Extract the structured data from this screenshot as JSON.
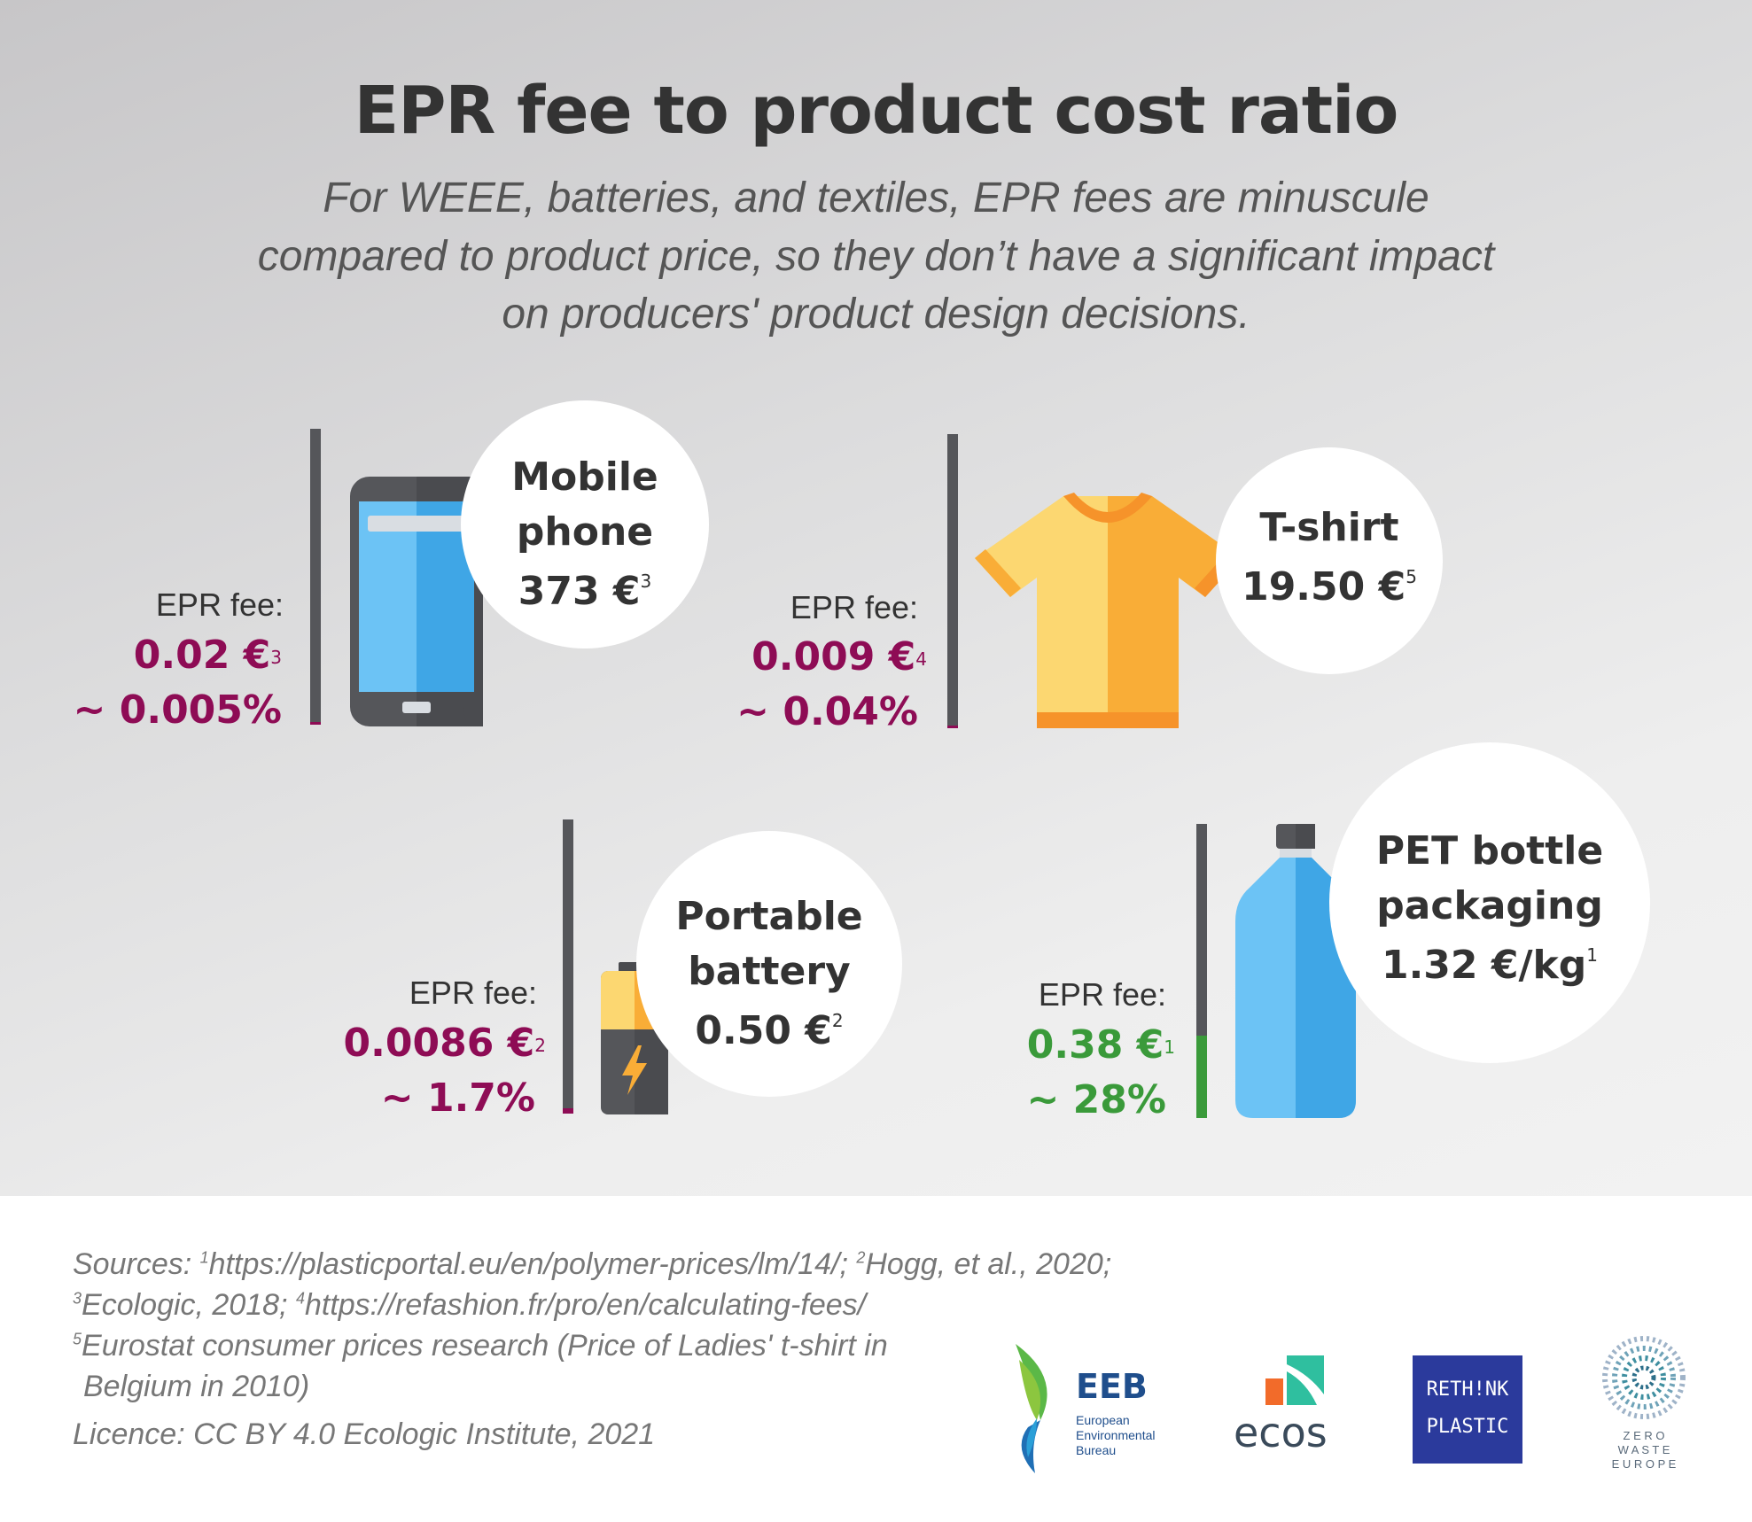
{
  "title": "EPR fee to product cost ratio",
  "subtitle_lines": [
    "For WEEE, batteries, and textiles, EPR fees are minuscule",
    "compared to product price, so they don’t have a significant impact",
    "on producers' product design decisions."
  ],
  "colors": {
    "fee_low": "#8e0c55",
    "fee_high": "#3a9a3a",
    "bar": "#55565a"
  },
  "items": [
    {
      "name_lines": [
        "Mobile",
        "phone"
      ],
      "price": "373 €",
      "price_ref": "3",
      "epr_label": "EPR fee:",
      "fee": "0.02 €",
      "fee_ref": "3",
      "ratio": "~ 0.005%",
      "ratio_fraction": 5e-05,
      "icon": "mobile-phone-icon"
    },
    {
      "name_lines": [
        "T-shirt"
      ],
      "price": "19.50 €",
      "price_ref": "5",
      "epr_label": "EPR fee:",
      "fee": "0.009 €",
      "fee_ref": "4",
      "ratio": "~ 0.04%",
      "ratio_fraction": 0.0004,
      "icon": "t-shirt-icon"
    },
    {
      "name_lines": [
        "Portable",
        "battery"
      ],
      "price": "0.50 €",
      "price_ref": "2",
      "epr_label": "EPR fee:",
      "fee": "0.0086 €",
      "fee_ref": "2",
      "ratio": "~ 1.7%",
      "ratio_fraction": 0.017,
      "icon": "battery-icon"
    },
    {
      "name_lines": [
        "PET bottle",
        "packaging"
      ],
      "price": "1.32 €/kg",
      "price_ref": "1",
      "epr_label": "EPR fee:",
      "fee": "0.38 €",
      "fee_ref": "1",
      "ratio": "~ 28%",
      "ratio_fraction": 0.28,
      "icon": "bottle-icon"
    }
  ],
  "sources": {
    "line1_prefix": "Sources: ",
    "ref1": "1",
    "src1": "https://plasticportal.eu/en/polymer-prices/lm/14/; ",
    "ref2": "2",
    "src2": "Hogg, et al., 2020;",
    "ref3": "3",
    "src3": "Ecologic, 2018; ",
    "ref4": "4",
    "src4": "https://refashion.fr/pro/en/calculating-fees/",
    "ref5": "5",
    "src5a": "Eurostat consumer prices research (Price of Ladies' t-shirt in",
    "src5b": "Belgium in 2010)",
    "licence": "Licence: CC BY 4.0 Ecologic Institute, 2021"
  },
  "logos": {
    "eeb": {
      "short": "EEB",
      "line1": "European",
      "line2": "Environmental",
      "line3": "Bureau"
    },
    "ecos": "ecos",
    "rethink": {
      "line1": "RETH!NK",
      "line2": "PLASTIC"
    },
    "zwe": {
      "line1": "Z E R O",
      "line2": "W A S T E",
      "line3": "E U R O P E"
    }
  }
}
